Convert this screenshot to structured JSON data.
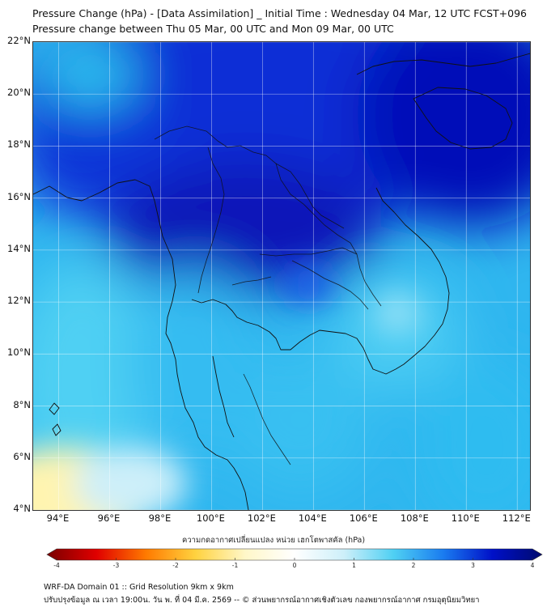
{
  "title_line1": "Pressure Change (hPa) - [Data Assimilation] _ Initial Time : Wednesday 04 Mar, 12 UTC FCST+096",
  "title_line2": "Pressure change between Thu 05 Mar, 00 UTC and Mon 09 Mar, 00 UTC",
  "map": {
    "lat_range": [
      4,
      22
    ],
    "lon_range": [
      93,
      112.5
    ],
    "lat_ticks": [
      "22°N",
      "20°N",
      "18°N",
      "16°N",
      "14°N",
      "12°N",
      "10°N",
      "8°N",
      "6°N",
      "4°N"
    ],
    "lat_values": [
      22,
      20,
      18,
      16,
      14,
      12,
      10,
      8,
      6,
      4
    ],
    "lon_ticks": [
      "94°E",
      "96°E",
      "98°E",
      "100°E",
      "102°E",
      "104°E",
      "106°E",
      "108°E",
      "110°E",
      "112°E"
    ],
    "lon_values": [
      94,
      96,
      98,
      100,
      102,
      104,
      106,
      108,
      110,
      112
    ],
    "grid": true
  },
  "colorbar": {
    "caption": "ความกดอากาศเปลี่ยนแปลง หน่วย เฮกโตพาสคัล (hPa)",
    "range": [
      -4,
      4
    ],
    "tick_labels": [
      "-4",
      "-3",
      "-2",
      "-1",
      "0",
      "1",
      "2",
      "3",
      "4"
    ],
    "tick_values": [
      -4,
      -3,
      -2,
      -1,
      0,
      1,
      2,
      3,
      4
    ],
    "colors": [
      "#7a0000",
      "#e00000",
      "#ff7a00",
      "#ffd23f",
      "#fff7c8",
      "#ffffff",
      "#cdeff9",
      "#4fd0f3",
      "#1a7cf0",
      "#0010c8",
      "#000a6e"
    ]
  },
  "footer_line1": "WRF-DA Domain 01 :: Grid Resolution 9km x 9km",
  "footer_line2": "ปรับปรุงข้อมูล ณ เวลา 19:00น. วัน พ. ที่ 04 มี.ค. 2569 -- © ส่วนพยากรณ์อากาศเชิงตัวเลข กองพยากรณ์อากาศ กรมอุตุนิยมวิทยา"
}
